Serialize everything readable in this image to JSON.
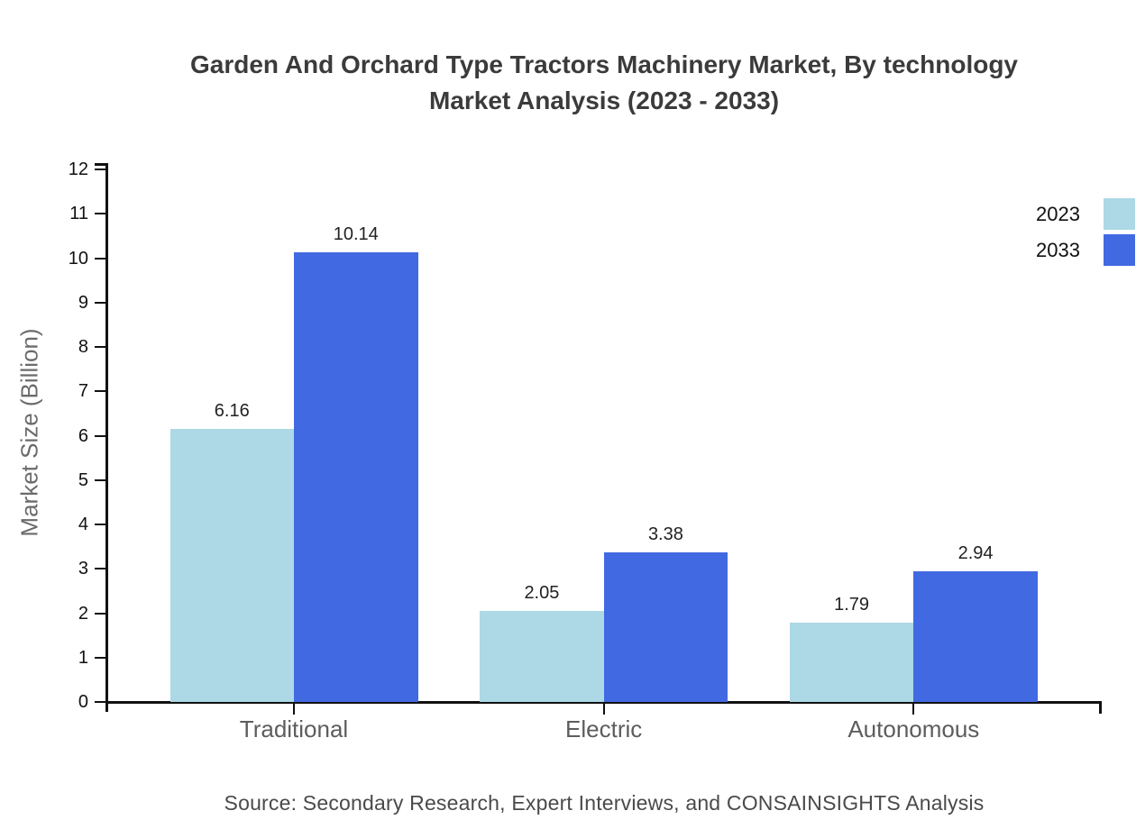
{
  "title": {
    "line1": "Garden And Orchard Type Tractors Machinery Market, By technology",
    "line2": "Market Analysis (2023 - 2033)"
  },
  "source": "Source: Secondary Research, Expert Interviews, and CONSAINSIGHTS Analysis",
  "colors": {
    "series_2023": "#ADD8E6",
    "series_2033": "#4169E1",
    "axis": "#111111",
    "title_text": "#3b3b3b",
    "category_text": "#5d5d5d",
    "source_text": "#4a4a4a"
  },
  "chart_data": {
    "type": "bar",
    "title": "Garden And Orchard Type Tractors Machinery Market, By technology Market Analysis (2023 - 2033)",
    "categories": [
      "Traditional",
      "Electric",
      "Autonomous"
    ],
    "series": [
      {
        "name": "2023",
        "color": "#ADD8E6",
        "values": [
          6.16,
          2.05,
          1.79
        ]
      },
      {
        "name": "2033",
        "color": "#4169E1",
        "values": [
          10.14,
          3.38,
          2.94
        ]
      }
    ],
    "xlabel": "",
    "ylabel": "Market Size (Billion)",
    "ylim": [
      0,
      12
    ],
    "yticks": [
      0,
      1,
      2,
      3,
      4,
      5,
      6,
      7,
      8,
      9,
      10,
      11,
      12
    ],
    "value_labels": true,
    "value_label_decimals": 2,
    "legend_position": "top-right",
    "grid": false
  }
}
